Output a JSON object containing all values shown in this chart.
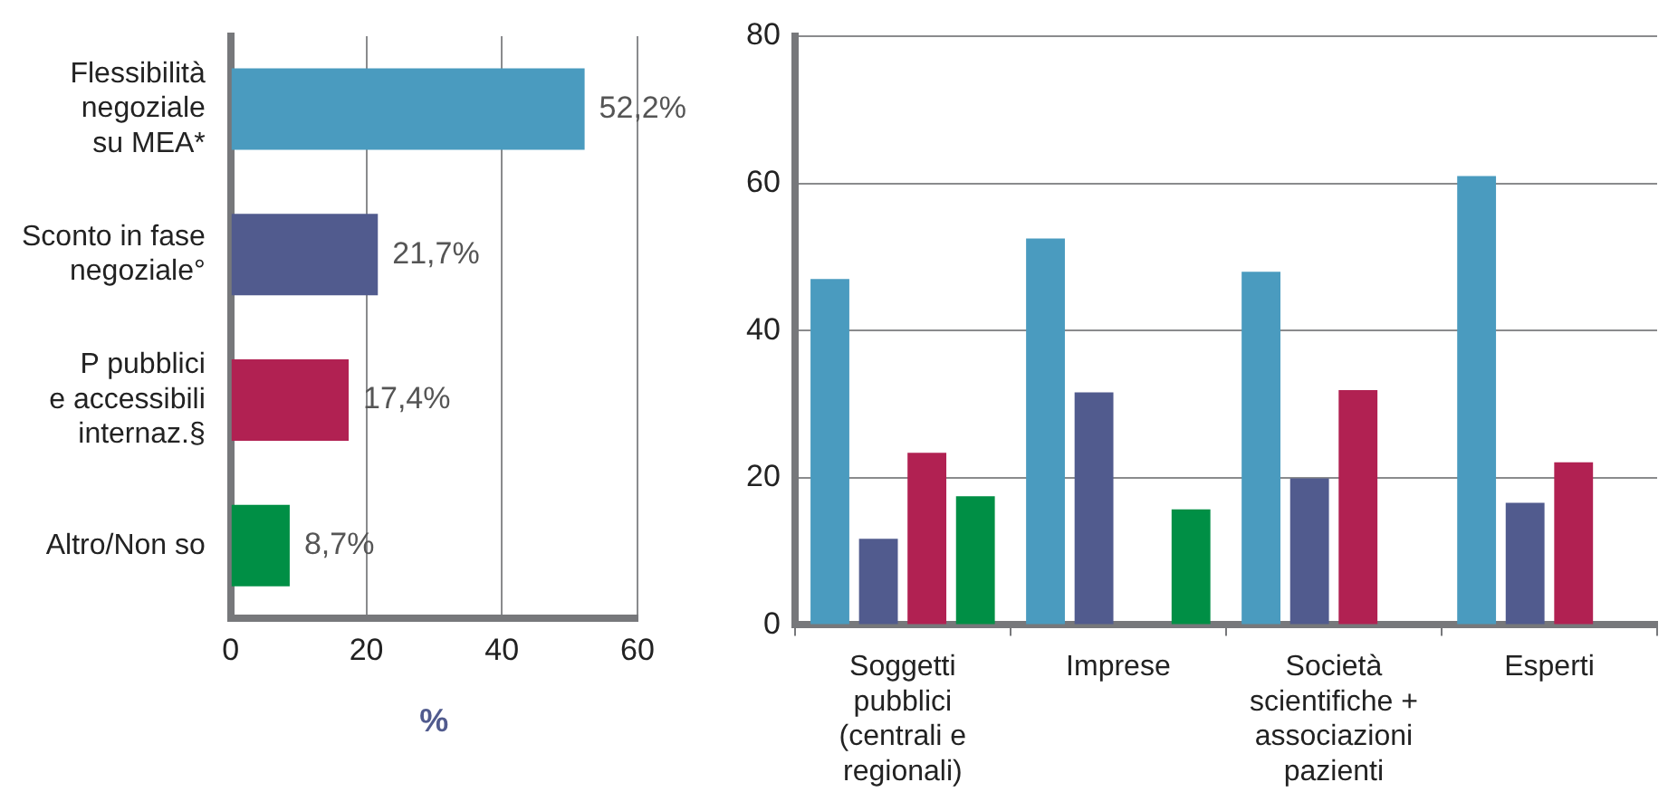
{
  "chart_data": [
    {
      "type": "bar",
      "orientation": "horizontal",
      "xlabel": "%",
      "categories": [
        "Flessibilità\nnegoziale\nsu MEA*",
        "Sconto in fase\nnegoziale°",
        "P pubblici\ne accessibili\ninternaz.§",
        "Altro/Non so"
      ],
      "values": [
        52.2,
        21.7,
        17.4,
        8.7
      ],
      "colors": [
        "#4a9bbf",
        "#515b8e",
        "#b12152",
        "#008f45"
      ],
      "value_labels": [
        "52,2%",
        "21,7%",
        "17,4%",
        "8,7%"
      ],
      "xlim": [
        0,
        60
      ],
      "xticks": [
        0,
        20,
        40,
        60
      ],
      "grid": "x",
      "legend": false
    },
    {
      "type": "bar",
      "categories": [
        "Soggetti\npubblici\n(centrali e\nregionali)",
        "Imprese",
        "Società\nscientifiche +\nassociazioni\npazienti",
        "Esperti"
      ],
      "series": [
        {
          "color": "#4a9bbf",
          "values": [
            47.0,
            52.5,
            48.0,
            61.0
          ]
        },
        {
          "color": "#515b8e",
          "values": [
            11.7,
            31.6,
            19.9,
            16.6
          ]
        },
        {
          "color": "#b12152",
          "values": [
            23.4,
            null,
            31.9,
            22.1
          ]
        },
        {
          "color": "#008f45",
          "values": [
            17.5,
            15.7,
            null,
            null
          ]
        }
      ],
      "ylim": [
        0,
        80
      ],
      "yticks": [
        0,
        20,
        40,
        60,
        80
      ],
      "grid": "y",
      "legend": false
    }
  ]
}
